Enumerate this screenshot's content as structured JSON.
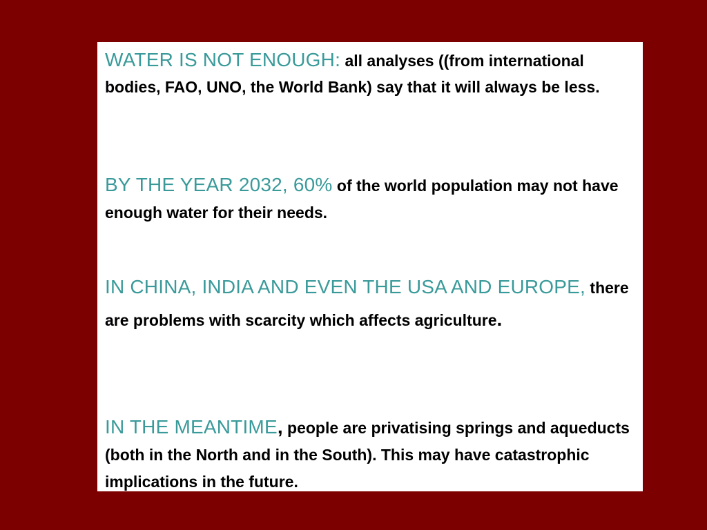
{
  "colors": {
    "background": "#7d0000",
    "panel": "#ffffff",
    "accent": "#3a9a9a",
    "text": "#000000"
  },
  "paragraphs": [
    {
      "lead": "WATER IS NOT ENOUGH:",
      "body": " all analyses ((from international bodies, FAO, UNO, the World Bank) say that it will always be less.",
      "trail": ""
    },
    {
      "lead": "BY THE YEAR 2032, 60%",
      "body": " of the world population may not have enough water for their needs.",
      "trail": ""
    },
    {
      "lead": "IN CHINA, INDIA AND EVEN THE USA AND EUROPE,",
      "body": " there are problems with scarcity which affects agriculture",
      "trail": "."
    },
    {
      "lead": "IN THE MEANTIME",
      "body": " people are privatising springs and aqueducts (both in the North and in the South). This may have catastrophic implications in the future.",
      "trail": "",
      "lead_suffix": ","
    }
  ]
}
